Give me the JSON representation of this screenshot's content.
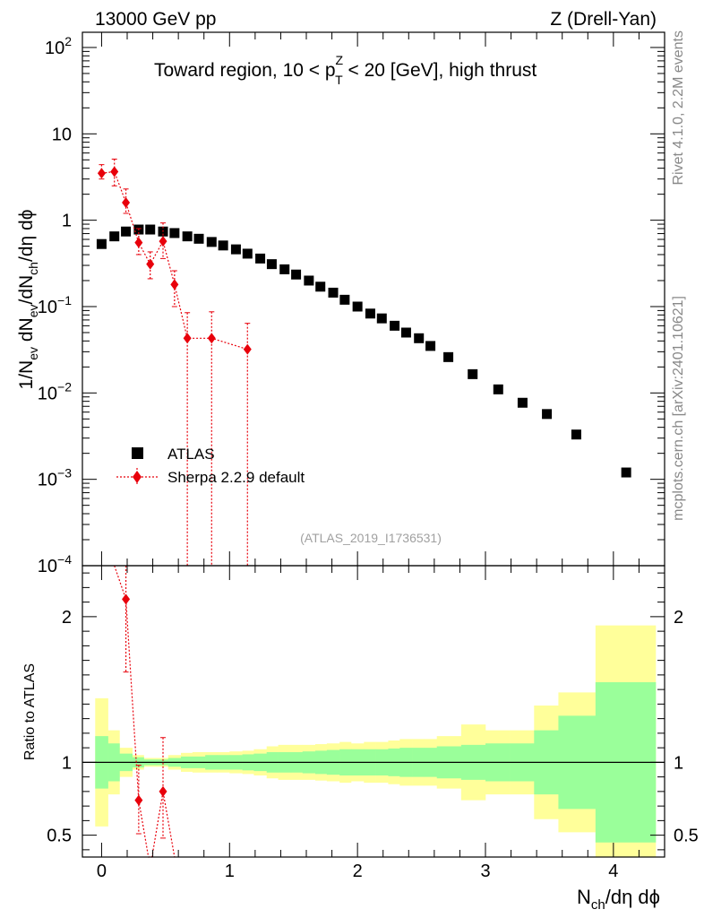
{
  "header": {
    "left": "13000 GeV pp",
    "right": "Z (Drell-Yan)"
  },
  "side_labels": {
    "rivet": "Rivet 4.1.0,  2.2M events",
    "mcplots": "mcplots.cern.ch [arXiv:2401.10621]"
  },
  "chart_data": [
    {
      "type": "scatter",
      "panel": "main",
      "title": "Toward region, 10 < p_T^Z < 20 [GeV], high thrust",
      "title_parts": {
        "prefix": "Toward region, 10 < p",
        "sup": "Z",
        "sub": "T",
        "suffix": " < 20 [GeV], high thrust"
      },
      "ylabel": "1/N_ev dN_ev/dN_ch/dη dϕ",
      "yscale": "log",
      "ylim": [
        0.0001,
        150
      ],
      "xlim": [
        -0.15,
        4.4
      ],
      "ytick_labels": [
        {
          "base": "10",
          "exp": "2",
          "value": 100
        },
        {
          "base": "10",
          "exp": "",
          "value": 10
        },
        {
          "base": "1",
          "exp": "",
          "value": 1
        },
        {
          "base": "10",
          "exp": "−1",
          "value": 0.1
        },
        {
          "base": "10",
          "exp": "−2",
          "value": 0.01
        },
        {
          "base": "10",
          "exp": "−3",
          "value": 0.001
        },
        {
          "base": "10",
          "exp": "−4",
          "value": 0.0001
        }
      ],
      "legend_position": "lower-left",
      "watermark": "(ATLAS_2019_I1736531)",
      "series": [
        {
          "name": "ATLAS",
          "marker": "square",
          "color": "#000000",
          "x": [
            0.0,
            0.1,
            0.19,
            0.29,
            0.38,
            0.48,
            0.57,
            0.67,
            0.76,
            0.86,
            0.95,
            1.05,
            1.14,
            1.24,
            1.33,
            1.43,
            1.52,
            1.62,
            1.71,
            1.81,
            1.9,
            2.0,
            2.1,
            2.19,
            2.29,
            2.38,
            2.48,
            2.57,
            2.71,
            2.9,
            3.1,
            3.29,
            3.48,
            3.71,
            4.1
          ],
          "values": [
            0.53,
            0.65,
            0.74,
            0.78,
            0.78,
            0.74,
            0.71,
            0.65,
            0.61,
            0.56,
            0.51,
            0.46,
            0.41,
            0.36,
            0.31,
            0.27,
            0.235,
            0.2,
            0.17,
            0.145,
            0.12,
            0.1,
            0.083,
            0.073,
            0.06,
            0.05,
            0.043,
            0.035,
            0.026,
            0.0165,
            0.011,
            0.0077,
            0.0057,
            0.0033,
            0.0012
          ]
        },
        {
          "name": "Sherpa 2.2.9 default",
          "marker": "diamond",
          "line": "dotted",
          "color": "#e8000b",
          "x": [
            0.0,
            0.1,
            0.19,
            0.29,
            0.38,
            0.48,
            0.57,
            0.67,
            0.86,
            1.14
          ],
          "values": [
            3.5,
            3.65,
            1.6,
            0.55,
            0.31,
            0.57,
            0.18,
            0.043,
            0.043,
            0.032
          ],
          "err_low": [
            3.0,
            2.5,
            1.2,
            0.4,
            0.21,
            0.36,
            0.1,
            1e-05,
            1e-05,
            1e-05
          ],
          "err_high": [
            4.4,
            5.1,
            2.3,
            0.8,
            0.43,
            0.93,
            0.26,
            0.085,
            0.087,
            0.064
          ]
        }
      ]
    },
    {
      "type": "scatter",
      "panel": "ratio",
      "ylabel": "Ratio to ATLAS",
      "xlabel": "N_ch/dη dϕ",
      "ylim": [
        0.35,
        2.35
      ],
      "xlim": [
        -0.15,
        4.4
      ],
      "xtick_labels": [
        "0",
        "1",
        "2",
        "3",
        "4"
      ],
      "ytick_labels": [
        "0.5",
        "1",
        "2"
      ],
      "reference_line": 1,
      "band_edges": [
        -0.05,
        0.05,
        0.14,
        0.24,
        0.33,
        0.43,
        0.52,
        0.62,
        0.71,
        0.81,
        0.9,
        1.0,
        1.1,
        1.19,
        1.29,
        1.38,
        1.48,
        1.57,
        1.67,
        1.76,
        1.86,
        1.95,
        2.05,
        2.14,
        2.24,
        2.33,
        2.43,
        2.52,
        2.62,
        2.81,
        3.0,
        3.19,
        3.38,
        3.57,
        3.86,
        4.33
      ],
      "band_inner": [
        0.18,
        0.13,
        0.06,
        0.035,
        0.02,
        0.02,
        0.03,
        0.04,
        0.04,
        0.05,
        0.05,
        0.05,
        0.055,
        0.06,
        0.07,
        0.07,
        0.07,
        0.075,
        0.08,
        0.085,
        0.09,
        0.09,
        0.09,
        0.09,
        0.095,
        0.1,
        0.1,
        0.1,
        0.11,
        0.12,
        0.13,
        0.13,
        0.22,
        0.32,
        0.55
      ],
      "band_outer": [
        0.44,
        0.22,
        0.1,
        0.05,
        0.03,
        0.03,
        0.05,
        0.065,
        0.07,
        0.07,
        0.07,
        0.075,
        0.08,
        0.09,
        0.11,
        0.12,
        0.12,
        0.12,
        0.125,
        0.13,
        0.14,
        0.13,
        0.14,
        0.14,
        0.15,
        0.16,
        0.16,
        0.16,
        0.18,
        0.26,
        0.22,
        0.22,
        0.39,
        0.48,
        0.94
      ],
      "band_colors": {
        "inner": "#9aff9a",
        "outer": "#ffff9a"
      },
      "series": [
        {
          "name": "Sherpa 2.2.9 default",
          "marker": "diamond",
          "color": "#e8000b",
          "x": [
            0.19,
            0.29,
            0.48
          ],
          "values": [
            2.12,
            0.74,
            0.8
          ],
          "err_low": [
            1.62,
            0.51,
            0.48
          ],
          "err_high": [
            2.35,
            0.98,
            1.17
          ],
          "offscale_line_x": [
            0.38,
            0.57
          ]
        }
      ]
    }
  ]
}
